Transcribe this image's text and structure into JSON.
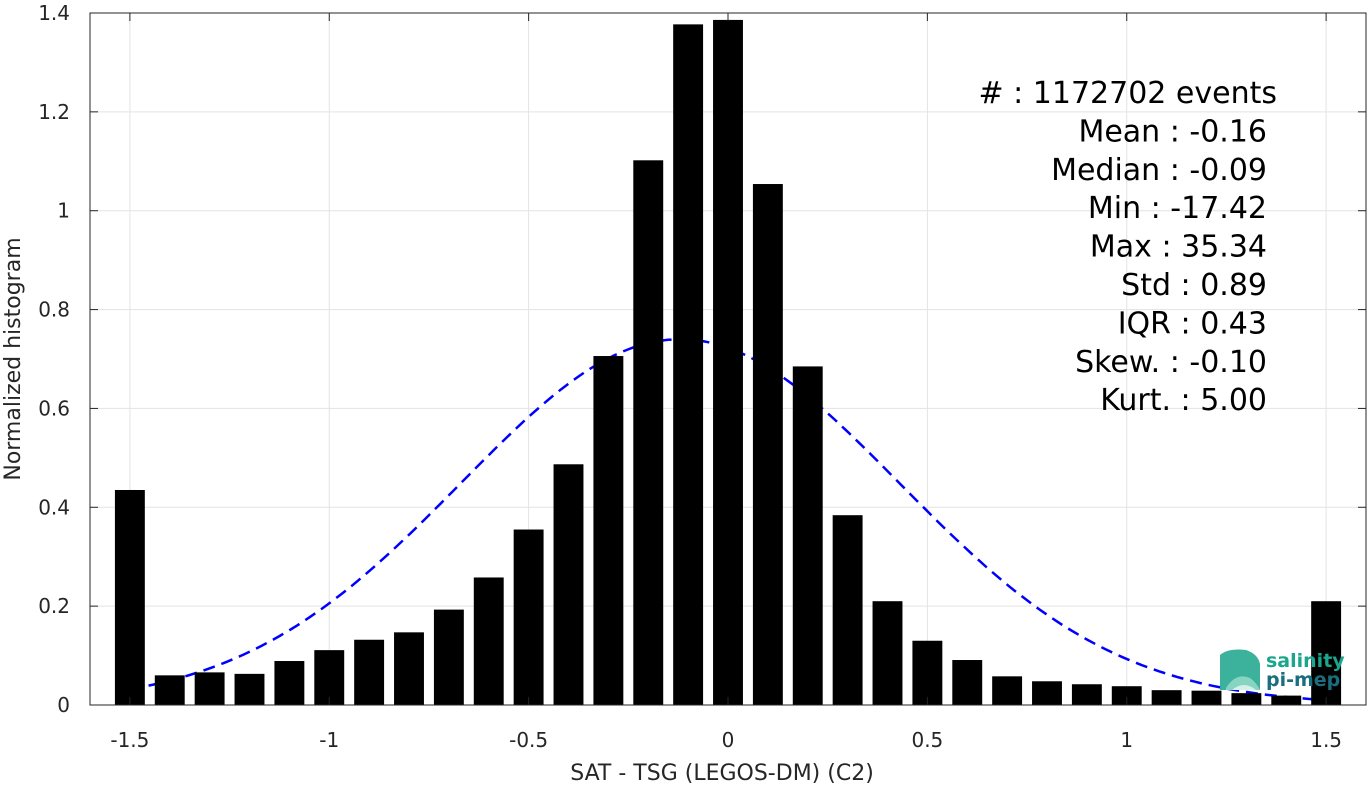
{
  "chart_data": {
    "type": "bar",
    "xlabel": "SAT - TSG (LEGOS-DM) (C2)",
    "ylabel": "Normalized histogram",
    "xlim": [
      -1.6,
      1.6
    ],
    "ylim": [
      0,
      1.4
    ],
    "xticks": [
      -1.5,
      -1,
      -0.5,
      0,
      0.5,
      1,
      1.5
    ],
    "xtick_labels": [
      "-1.5",
      "-1",
      "-0.5",
      "0",
      "0.5",
      "1",
      "1.5"
    ],
    "yticks": [
      0,
      0.2,
      0.4,
      0.6,
      0.8,
      1,
      1.2,
      1.4
    ],
    "ytick_labels": [
      "0",
      "0.2",
      "0.4",
      "0.6",
      "0.8",
      "1",
      "1.2",
      "1.4"
    ],
    "grid": true,
    "bar_width": 0.075,
    "bar_color": "#000000",
    "series": [
      {
        "x": [
          -1.5,
          -1.4,
          -1.3,
          -1.2,
          -1.1,
          -1.0,
          -0.9,
          -0.8,
          -0.7,
          -0.6,
          -0.5,
          -0.4,
          -0.3,
          -0.2,
          -0.1,
          0.0,
          0.1,
          0.2,
          0.3,
          0.4,
          0.5,
          0.6,
          0.7,
          0.8,
          0.9,
          1.0,
          1.1,
          1.2,
          1.3,
          1.4,
          1.5
        ],
        "values": [
          0.435,
          0.06,
          0.066,
          0.063,
          0.089,
          0.111,
          0.132,
          0.147,
          0.193,
          0.258,
          0.355,
          0.487,
          0.706,
          1.102,
          1.377,
          1.386,
          1.054,
          0.685,
          0.384,
          0.21,
          0.13,
          0.091,
          0.058,
          0.048,
          0.042,
          0.038,
          0.03,
          0.029,
          0.024,
          0.019,
          0.21
        ]
      }
    ],
    "fit_curve": {
      "style": "dashed",
      "color": "#0000ff",
      "mean": -0.12,
      "peak": 0.74,
      "sigma": 0.55,
      "x_range": [
        -1.5,
        1.5
      ]
    },
    "stats_lines": [
      "#  : 1172702 events",
      "Mean : -0.16",
      "Median : -0.09",
      "Min : -17.42",
      "Max : 35.34",
      "Std : 0.89",
      "IQR : 0.43",
      "Skew. : -0.10",
      "Kurt. : 5.00"
    ]
  },
  "logo": {
    "line1": "salinity",
    "line2": "pi-mep",
    "color": "#1aa58c"
  }
}
